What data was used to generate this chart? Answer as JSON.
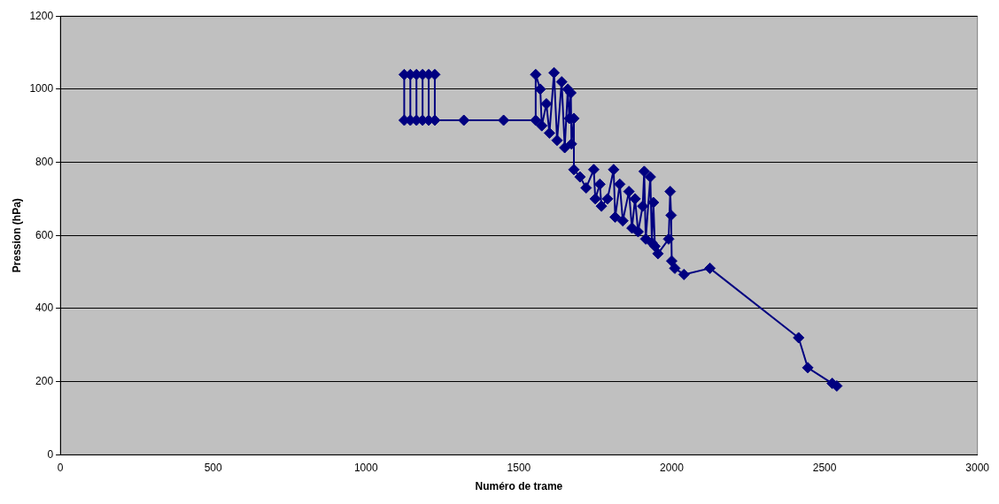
{
  "chart_data": {
    "type": "line",
    "xlabel": "Numéro de trame",
    "ylabel": "Pression (hPa)",
    "xlim": [
      0,
      3000
    ],
    "xticks": [
      0,
      500,
      1000,
      1500,
      2000,
      2500,
      3000
    ],
    "ylim": [
      0,
      1200
    ],
    "yticks": [
      0,
      200,
      400,
      600,
      800,
      1000,
      1200
    ],
    "grid": "y",
    "legend": false,
    "marker": "diamond",
    "line_style": "solid",
    "series": [
      {
        "color": "#000080",
        "x": [
          1125,
          1125,
          1145,
          1145,
          1165,
          1165,
          1185,
          1185,
          1205,
          1205,
          1225,
          1225,
          1320,
          1450,
          1555,
          1555,
          1570,
          1575,
          1590,
          1600,
          1615,
          1625,
          1640,
          1650,
          1660,
          1665,
          1670,
          1672,
          1680,
          1680,
          1700,
          1720,
          1745,
          1750,
          1765,
          1770,
          1790,
          1810,
          1815,
          1830,
          1840,
          1860,
          1870,
          1880,
          1890,
          1905,
          1910,
          1915,
          1930,
          1935,
          1940,
          1945,
          1955,
          1990,
          1995,
          1998,
          2000,
          2010,
          2040,
          2125,
          2415,
          2445,
          2525,
          2540
        ],
        "values": [
          915,
          1040,
          1040,
          915,
          915,
          1040,
          1040,
          915,
          915,
          1040,
          1040,
          915,
          915,
          915,
          915,
          1040,
          1000,
          900,
          960,
          880,
          1045,
          860,
          1020,
          840,
          1000,
          920,
          990,
          850,
          920,
          780,
          760,
          730,
          780,
          700,
          740,
          680,
          700,
          780,
          650,
          740,
          640,
          720,
          620,
          700,
          610,
          680,
          775,
          590,
          760,
          580,
          690,
          570,
          550,
          590,
          720,
          655,
          530,
          510,
          493,
          510,
          320,
          238,
          195,
          188
        ]
      }
    ]
  }
}
